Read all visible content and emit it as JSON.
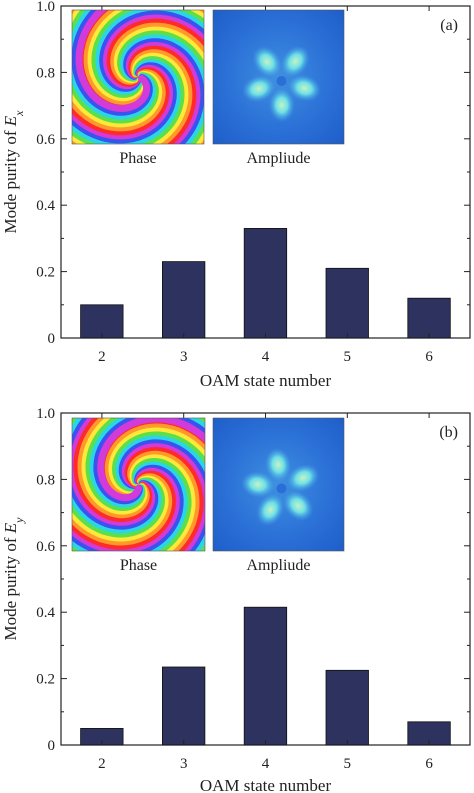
{
  "chart_data": [
    {
      "type": "bar",
      "panel_label": "(a)",
      "categories": [
        "2",
        "3",
        "4",
        "5",
        "6"
      ],
      "values": [
        0.1,
        0.23,
        0.33,
        0.21,
        0.12
      ],
      "xlabel": "OAM state number",
      "ylabel": "Mode purity of ",
      "ylabel_var": "E",
      "ylabel_sub": "x",
      "ylim": [
        0,
        1.0
      ],
      "yticks": [
        "0",
        "0.2",
        "0.4",
        "0.6",
        "0.8",
        "1.0"
      ],
      "grid": false,
      "bar_color": "#2e325e",
      "insets": [
        {
          "caption": "Phase",
          "kind": "phase"
        },
        {
          "caption": "Ampliude",
          "kind": "amplitude"
        }
      ]
    },
    {
      "type": "bar",
      "panel_label": "(b)",
      "categories": [
        "2",
        "3",
        "4",
        "5",
        "6"
      ],
      "values": [
        0.05,
        0.235,
        0.415,
        0.225,
        0.07
      ],
      "xlabel": "OAM state number",
      "ylabel": "Mode purity of ",
      "ylabel_var": "E",
      "ylabel_sub": "y",
      "ylim": [
        0,
        1.0
      ],
      "yticks": [
        "0",
        "0.2",
        "0.4",
        "0.6",
        "0.8",
        "1.0"
      ],
      "grid": false,
      "bar_color": "#2e325e",
      "insets": [
        {
          "caption": "Phase",
          "kind": "phase"
        },
        {
          "caption": "Ampliude",
          "kind": "amplitude"
        }
      ]
    }
  ]
}
